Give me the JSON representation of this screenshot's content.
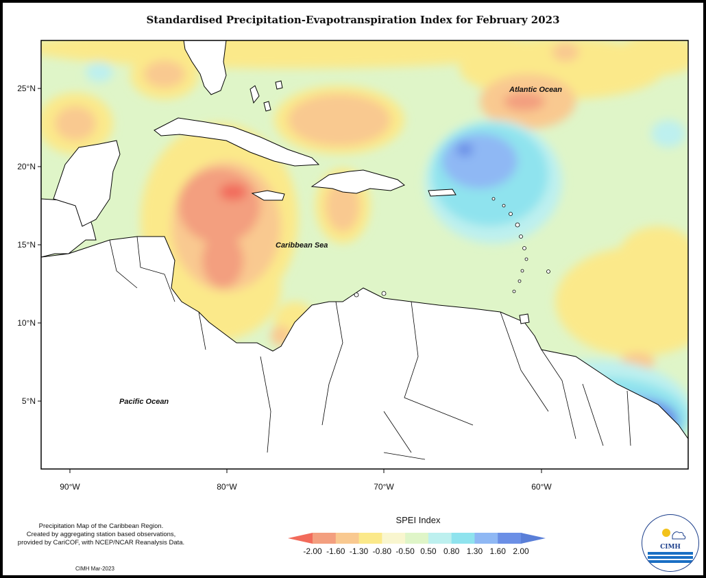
{
  "title": "Standardised Precipitation-Evapotranspiration Index for February 2023",
  "map": {
    "lat_ticks": [
      "25°N",
      "20°N",
      "15°N",
      "10°N",
      "5°N"
    ],
    "lon_ticks": [
      "90°W",
      "80°W",
      "70°W",
      "60°W"
    ],
    "regions": {
      "atlantic": "Atlantic Ocean",
      "caribbean": "Caribbean Sea",
      "pacific": "Pacific Ocean"
    }
  },
  "legend": {
    "title": "SPEI Index",
    "labels": [
      "-2.00",
      "-1.60",
      "-1.30",
      "-0.80",
      "-0.50",
      "0.50",
      "0.80",
      "1.30",
      "1.60",
      "2.00"
    ],
    "colors": [
      "#f26b5b",
      "#f39f7f",
      "#f9c990",
      "#fbe98a",
      "#f9f6cf",
      "#dff5c8",
      "#bdf0ef",
      "#8fe3ee",
      "#8fb8f4",
      "#6b8fe6",
      "#5a7fd8"
    ]
  },
  "caption": {
    "lines": [
      "Precipitation Map of the Caribbean Region.",
      "Created by aggregating station based observations,",
      "provided by CariCOF, with NCEP/NCAR Reanalysis Data."
    ],
    "credit": "CIMH Mar-2023"
  },
  "logo": {
    "text": "CIMH"
  }
}
